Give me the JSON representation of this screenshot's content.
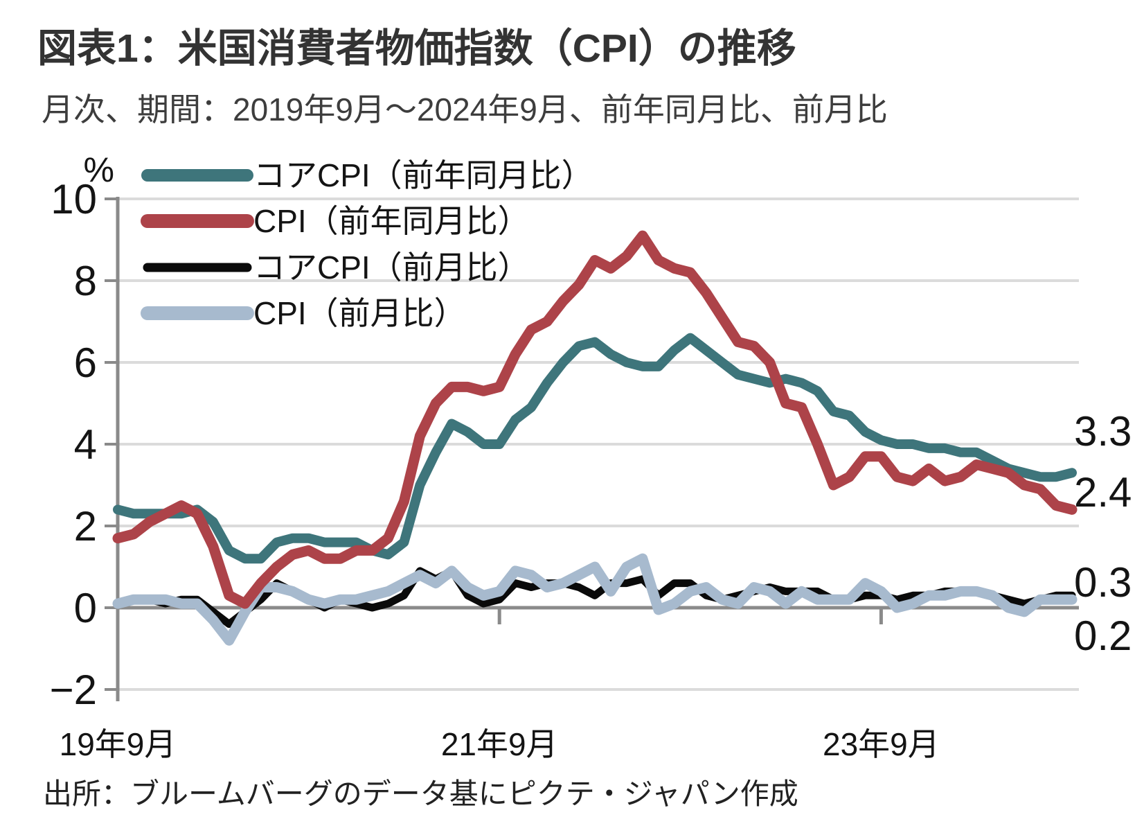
{
  "chart_data": {
    "type": "line",
    "title": "図表1：米国消費者物価指数（CPI）の推移",
    "subtitle": "月次、期間：2019年9月～2024年9月、前年同月比、前月比",
    "source": "出所：ブルームバーグのデータ基にピクテ・ジャパン作成",
    "unit_label": "%",
    "x_start": "2019-09",
    "x_end": "2024-09",
    "x_frequency": "monthly",
    "x_tick_labels": [
      "19年9月",
      "21年9月",
      "23年9月"
    ],
    "x_tick_month_indices": [
      0,
      24,
      48
    ],
    "x_axis_ticks_on_zero_line_month_indices": [
      24,
      48
    ],
    "ylim": [
      -2,
      10
    ],
    "yticks": [
      -2,
      0,
      2,
      4,
      6,
      8,
      10
    ],
    "grid": "horizontal-only",
    "legend_position": "top-left-inside",
    "colors": {
      "gridline": "#dbdbdb",
      "zero_line": "#8a8a8a",
      "axis": "#8a8a8a",
      "text": "#141414"
    },
    "series": [
      {
        "id": "core-cpi-yoy",
        "name": "コアCPI（前年同月比）",
        "color": "#3E757B",
        "end_label": "3.3",
        "values": [
          2.4,
          2.3,
          2.3,
          2.3,
          2.3,
          2.4,
          2.1,
          1.4,
          1.2,
          1.2,
          1.6,
          1.7,
          1.7,
          1.6,
          1.6,
          1.6,
          1.4,
          1.3,
          1.6,
          3.0,
          3.8,
          4.5,
          4.3,
          4.0,
          4.0,
          4.6,
          4.9,
          5.5,
          6.0,
          6.4,
          6.5,
          6.2,
          6.0,
          5.9,
          5.9,
          6.3,
          6.6,
          6.3,
          6.0,
          5.7,
          5.6,
          5.5,
          5.6,
          5.5,
          5.3,
          4.8,
          4.7,
          4.3,
          4.1,
          4.0,
          4.0,
          3.9,
          3.9,
          3.8,
          3.8,
          3.6,
          3.4,
          3.3,
          3.2,
          3.2,
          3.3
        ]
      },
      {
        "id": "cpi-yoy",
        "name": "CPI（前年同月比）",
        "color": "#AD4349",
        "end_label": "2.4",
        "values": [
          1.7,
          1.8,
          2.1,
          2.3,
          2.5,
          2.3,
          1.5,
          0.3,
          0.1,
          0.6,
          1.0,
          1.3,
          1.4,
          1.2,
          1.2,
          1.4,
          1.4,
          1.7,
          2.6,
          4.2,
          5.0,
          5.4,
          5.4,
          5.3,
          5.4,
          6.2,
          6.8,
          7.0,
          7.5,
          7.9,
          8.5,
          8.3,
          8.6,
          9.1,
          8.5,
          8.3,
          8.2,
          7.7,
          7.1,
          6.5,
          6.4,
          6.0,
          5.0,
          4.9,
          4.0,
          3.0,
          3.2,
          3.7,
          3.7,
          3.2,
          3.1,
          3.4,
          3.1,
          3.2,
          3.5,
          3.4,
          3.3,
          3.0,
          2.9,
          2.5,
          2.4
        ]
      },
      {
        "id": "core-cpi-mom",
        "name": "コアCPI（前月比）",
        "color": "#0a0a0a",
        "end_label": "0.3",
        "values": [
          0.1,
          0.2,
          0.2,
          0.1,
          0.2,
          0.2,
          -0.1,
          -0.4,
          -0.1,
          0.2,
          0.6,
          0.4,
          0.2,
          0.0,
          0.2,
          0.1,
          0.0,
          0.1,
          0.3,
          0.9,
          0.7,
          0.9,
          0.3,
          0.1,
          0.2,
          0.6,
          0.5,
          0.6,
          0.6,
          0.5,
          0.3,
          0.6,
          0.6,
          0.7,
          0.3,
          0.6,
          0.6,
          0.3,
          0.2,
          0.3,
          0.4,
          0.5,
          0.4,
          0.4,
          0.4,
          0.2,
          0.2,
          0.3,
          0.3,
          0.2,
          0.3,
          0.3,
          0.4,
          0.4,
          0.4,
          0.3,
          0.2,
          0.1,
          0.2,
          0.3,
          0.3
        ]
      },
      {
        "id": "cpi-mom",
        "name": "CPI（前月比）",
        "color": "#A7BACE",
        "end_label": "0.2",
        "values": [
          0.1,
          0.2,
          0.2,
          0.2,
          0.1,
          0.1,
          -0.3,
          -0.8,
          -0.1,
          0.5,
          0.5,
          0.4,
          0.2,
          0.1,
          0.2,
          0.2,
          0.3,
          0.4,
          0.6,
          0.8,
          0.6,
          0.9,
          0.5,
          0.3,
          0.4,
          0.9,
          0.8,
          0.5,
          0.6,
          0.8,
          1.0,
          0.4,
          1.0,
          1.2,
          -0.05,
          0.1,
          0.4,
          0.5,
          0.2,
          0.1,
          0.5,
          0.4,
          0.1,
          0.4,
          0.2,
          0.2,
          0.2,
          0.6,
          0.4,
          0.0,
          0.1,
          0.3,
          0.3,
          0.4,
          0.4,
          0.3,
          0.0,
          -0.1,
          0.2,
          0.2,
          0.2
        ]
      }
    ]
  }
}
